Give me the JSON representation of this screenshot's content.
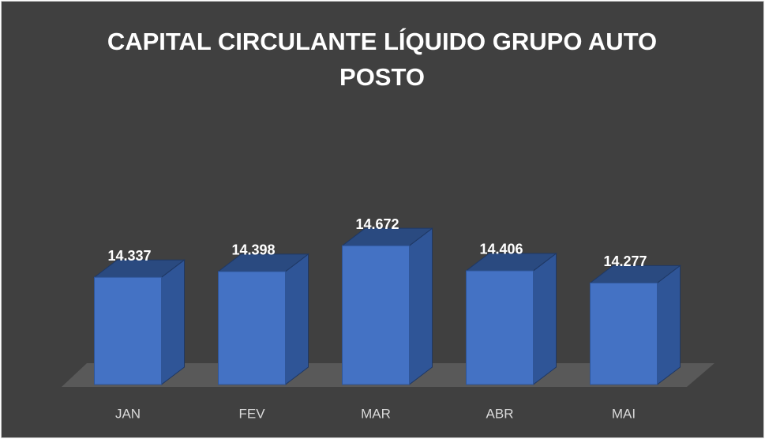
{
  "chart_data": {
    "type": "bar3d",
    "title": "CAPITAL CIRCULANTE LÍQUIDO GRUPO AUTO POSTO",
    "categories": [
      "JAN",
      "FEV",
      "MAR",
      "ABR",
      "MAI"
    ],
    "values": [
      14337,
      14398,
      14672,
      14406,
      14277
    ],
    "value_labels": [
      "14.337",
      "14.398",
      "14.672",
      "14.406",
      "14.277"
    ],
    "color": "#4472c4",
    "ylim": [
      13200,
      15000
    ]
  }
}
